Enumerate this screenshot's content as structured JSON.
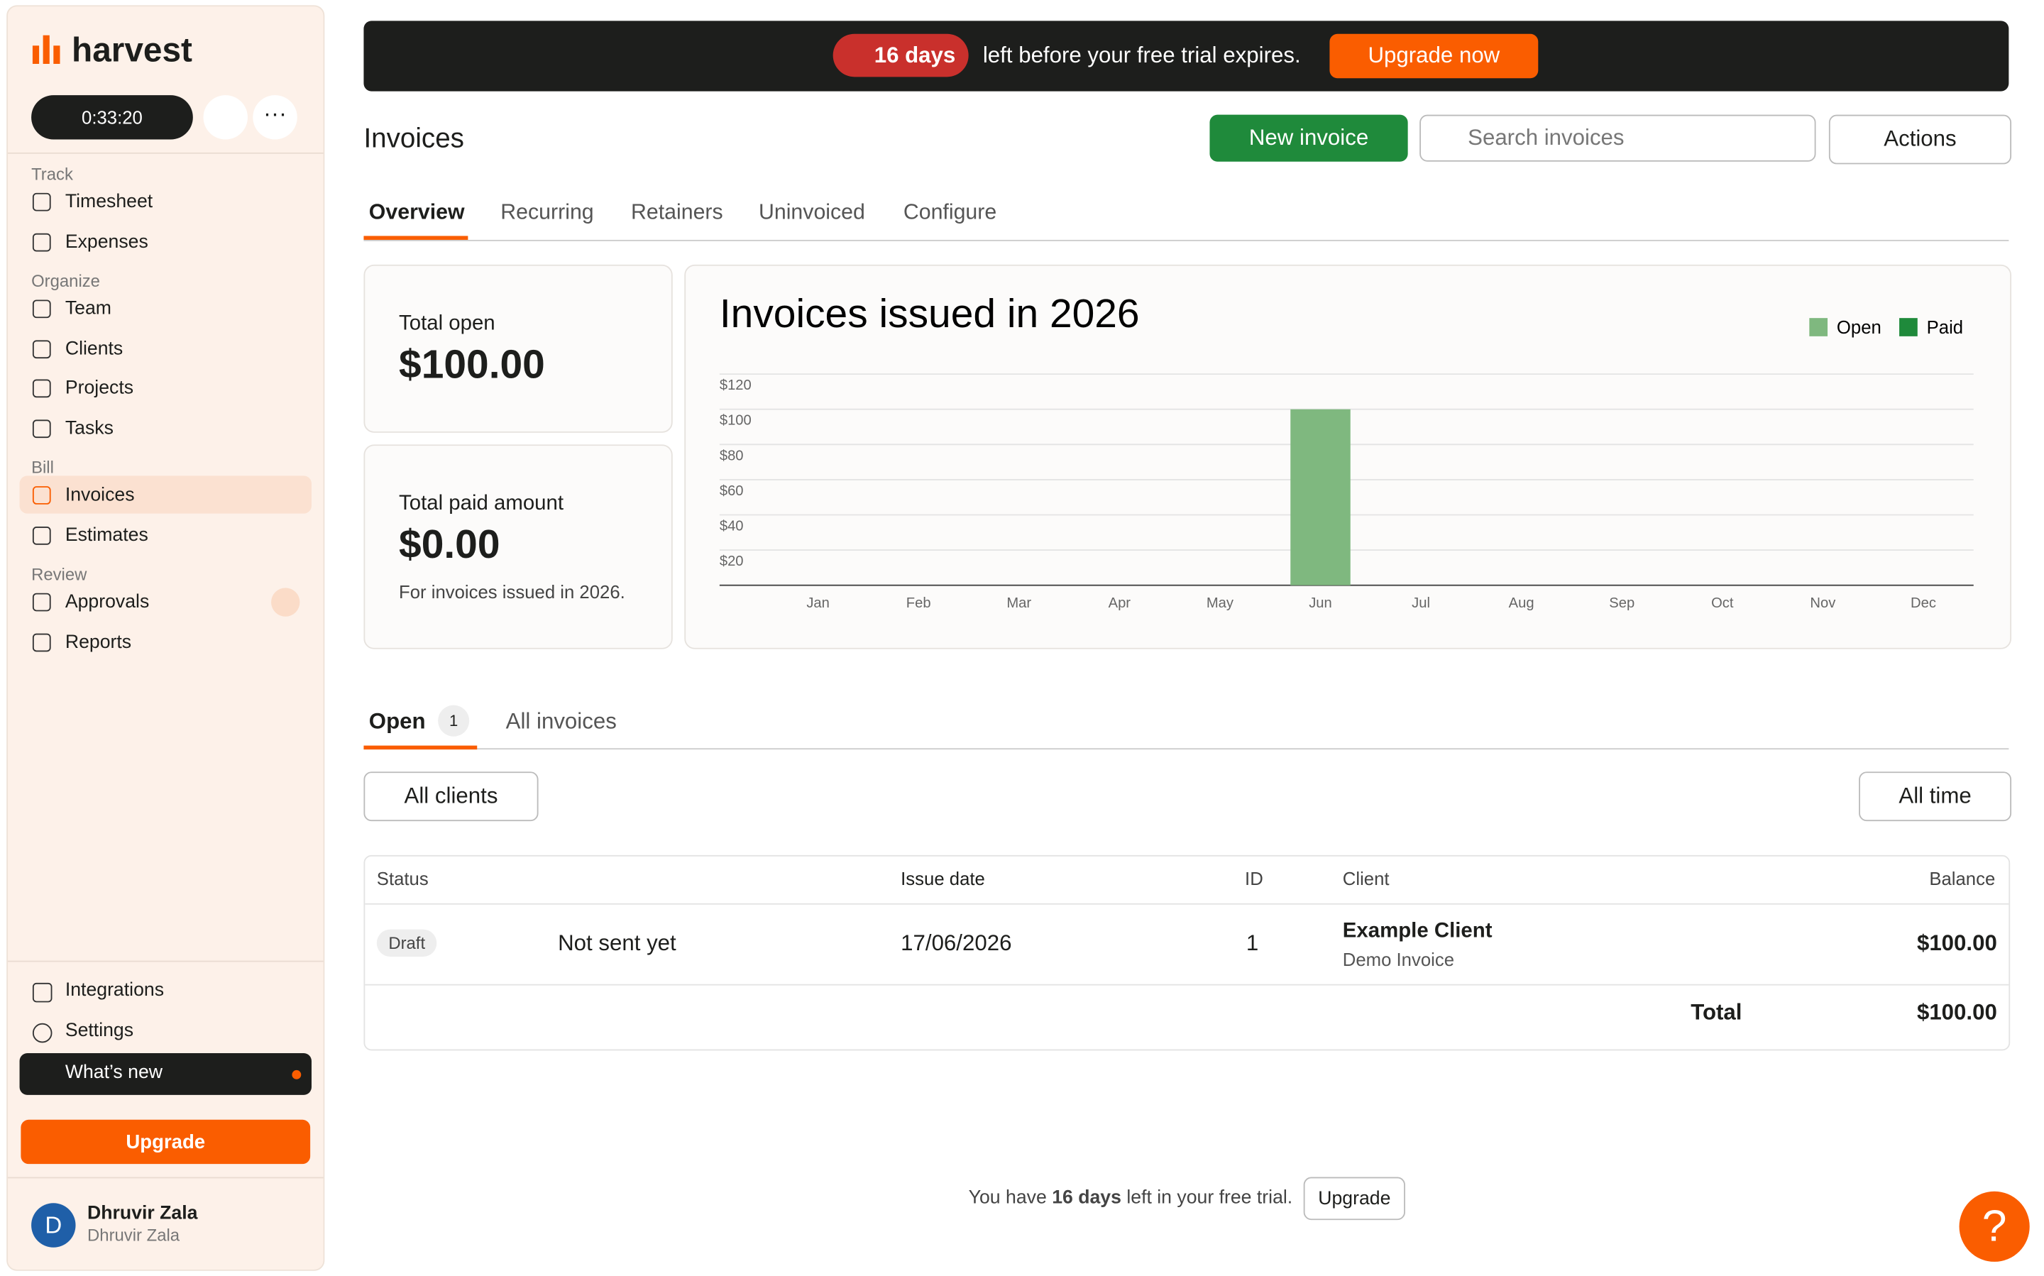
{
  "sidebar": {
    "logo": "harvest",
    "timer": "0:33:20",
    "sections": [
      {
        "title": "Track",
        "items": [
          "Timesheet",
          "Expenses"
        ]
      },
      {
        "title": "Organize",
        "items": [
          "Team",
          "Clients",
          "Projects",
          "Tasks"
        ]
      },
      {
        "title": "Bill",
        "items": [
          "Invoices",
          "Estimates"
        ]
      },
      {
        "title": "Review",
        "items": [
          "Approvals",
          "Reports"
        ]
      }
    ],
    "bottom_items": [
      "Integrations",
      "Settings",
      "What’s new"
    ],
    "upgrade": "Upgrade",
    "user": {
      "initial": "D",
      "name": "Dhruvir Zala",
      "subtitle": "Dhruvir Zala"
    }
  },
  "banner": {
    "days": "16 days",
    "text": "left before your free trial expires.",
    "button": "Upgrade now"
  },
  "header": {
    "title": "Invoices",
    "new_button": "New invoice",
    "search_placeholder": "Search invoices",
    "actions": "Actions"
  },
  "tabs": [
    "Overview",
    "Recurring",
    "Retainers",
    "Uninvoiced",
    "Configure"
  ],
  "cards": {
    "open_label": "Total open",
    "open_value": "$100.00",
    "paid_label": "Total paid amount",
    "paid_value": "$0.00",
    "paid_note": "For invoices issued in 2026."
  },
  "chart_data": {
    "type": "bar",
    "title": "Invoices issued in 2026",
    "categories": [
      "Jan",
      "Feb",
      "Mar",
      "Apr",
      "May",
      "Jun",
      "Jul",
      "Aug",
      "Sep",
      "Oct",
      "Nov",
      "Dec"
    ],
    "series": [
      {
        "name": "Open",
        "color": "#7fb87f",
        "values": [
          0,
          0,
          0,
          0,
          0,
          100,
          0,
          0,
          0,
          0,
          0,
          0
        ]
      },
      {
        "name": "Paid",
        "color": "#1f8a3b",
        "values": [
          0,
          0,
          0,
          0,
          0,
          0,
          0,
          0,
          0,
          0,
          0,
          0
        ]
      }
    ],
    "ylim": [
      0,
      120
    ],
    "yticks": [
      {
        "value": 20,
        "label": "$20"
      },
      {
        "value": 40,
        "label": "$40"
      },
      {
        "value": 60,
        "label": "$60"
      },
      {
        "value": 80,
        "label": "$80"
      },
      {
        "value": 100,
        "label": "$100"
      },
      {
        "value": 120,
        "label": "$120"
      }
    ],
    "grid": true,
    "legend": "top-right"
  },
  "list_tabs": {
    "open": "Open",
    "open_count": "1",
    "all": "All invoices"
  },
  "filters": {
    "clients": "All clients",
    "time": "All time"
  },
  "table": {
    "headers": [
      "Status",
      "Issue date",
      "ID",
      "Client",
      "Balance"
    ],
    "rows": [
      {
        "status": "Draft",
        "note": "Not sent yet",
        "date": "17/06/2026",
        "id": "1",
        "client": "Example Client",
        "subject": "Demo Invoice",
        "balance": "$100.00"
      }
    ],
    "total_label": "Total",
    "total": "$100.00"
  },
  "footer": {
    "text_before": "You have",
    "days": "16 days",
    "text_after": "left in your free trial.",
    "button": "Upgrade"
  },
  "help": "?"
}
